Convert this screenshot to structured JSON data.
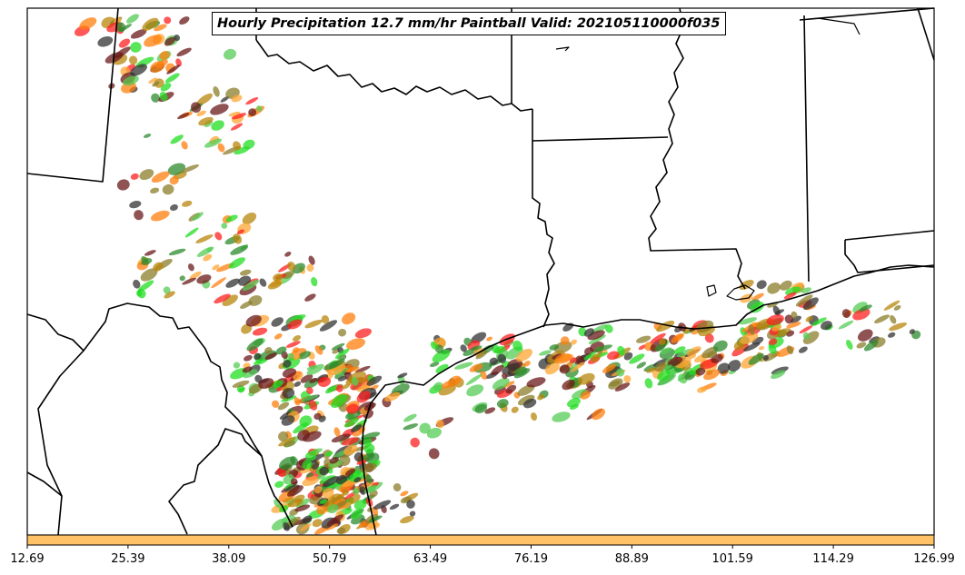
{
  "title": "Hourly Precipitation 12.7 mm/hr Paintball Valid: 202105110000f035",
  "colorbar": {
    "fill_color": "#FFC266",
    "tick_labels": [
      "12.69",
      "25.39",
      "38.09",
      "50.79",
      "63.49",
      "76.19",
      "88.89",
      "101.59",
      "114.29",
      "126.99"
    ]
  },
  "member_colors": [
    "#22DD22",
    "#55CC55",
    "#2E8B2E",
    "#FF2020",
    "#FF7F0E",
    "#FFA533",
    "#B8860B",
    "#8B7D2B",
    "#6B1A1A",
    "#333333"
  ]
}
